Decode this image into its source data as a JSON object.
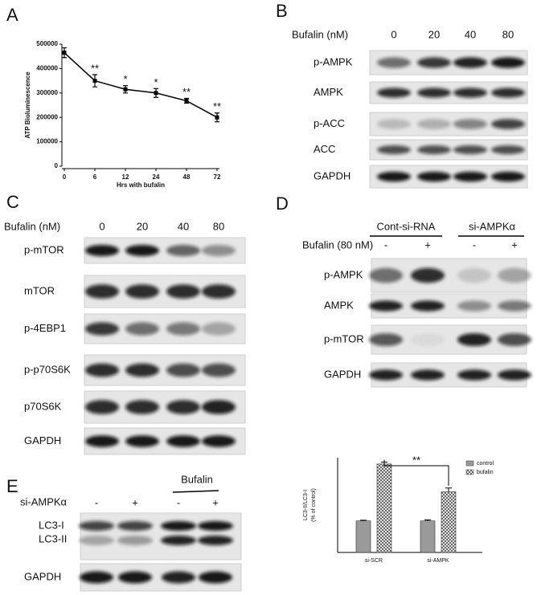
{
  "panel_labels": [
    "A",
    "B",
    "C",
    "D",
    "E"
  ],
  "chart_data": [
    {
      "type": "line",
      "xlabel": "Hrs with bufalin",
      "ylabel": "ATP Bioluminescence",
      "categories": [
        "0",
        "6",
        "12",
        "24",
        "48",
        "72"
      ],
      "values": [
        465000,
        350000,
        315000,
        300000,
        268000,
        200000
      ],
      "errors": [
        20000,
        25000,
        15000,
        18000,
        10000,
        18000
      ],
      "significance": [
        null,
        "**",
        "*",
        "*",
        "**",
        "**"
      ],
      "color": "#000000",
      "ylim": [
        0,
        500000
      ],
      "yticks": [
        0,
        100000,
        200000,
        300000,
        400000,
        500000
      ]
    },
    {
      "type": "bar",
      "ylabel": [
        "LC3-II/LC3-I",
        "(% of control)"
      ],
      "categories": [
        "si-SCR",
        "si-AMPK"
      ],
      "series": [
        {
          "name": "control",
          "color": "#9a9a9a",
          "values": [
            100,
            100
          ],
          "errors": [
            2,
            3
          ]
        },
        {
          "name": "bufalin",
          "color": "#ffffff",
          "pattern": "crosshatch",
          "values": [
            280,
            192
          ],
          "errors": [
            6,
            12
          ]
        }
      ],
      "annotation": "**",
      "ylim": [
        0,
        300
      ],
      "legend": "top-right"
    }
  ],
  "blots": {
    "B": {
      "header": "Bufalin (nM)",
      "lanes": [
        "0",
        "20",
        "40",
        "80"
      ],
      "rows": [
        "p-AMPK",
        "AMPK",
        "p-ACC",
        "ACC",
        "GAPDH"
      ]
    },
    "C": {
      "header": "Bufalin (nM)",
      "lanes": [
        "0",
        "20",
        "40",
        "80"
      ],
      "rows": [
        "p-mTOR",
        "mTOR",
        "p-4EBP1",
        "p-p70S6K",
        "p70S6K",
        "GAPDH"
      ]
    },
    "D": {
      "groups": [
        "Cont-si-RNA",
        "si-AMPKα"
      ],
      "treatment": "Bufalin  (80 nM)",
      "signs": [
        "-",
        "+",
        "-",
        "+"
      ],
      "rows": [
        "p-AMPK",
        "AMPK",
        "p-mTOR",
        "GAPDH"
      ]
    },
    "E": {
      "group": "Bufalin",
      "treatment": "si-AMPKα",
      "signs": [
        "-",
        "+",
        "-",
        "+"
      ],
      "rows": [
        "LC3-I",
        "LC3-II",
        "GAPDH"
      ]
    }
  }
}
